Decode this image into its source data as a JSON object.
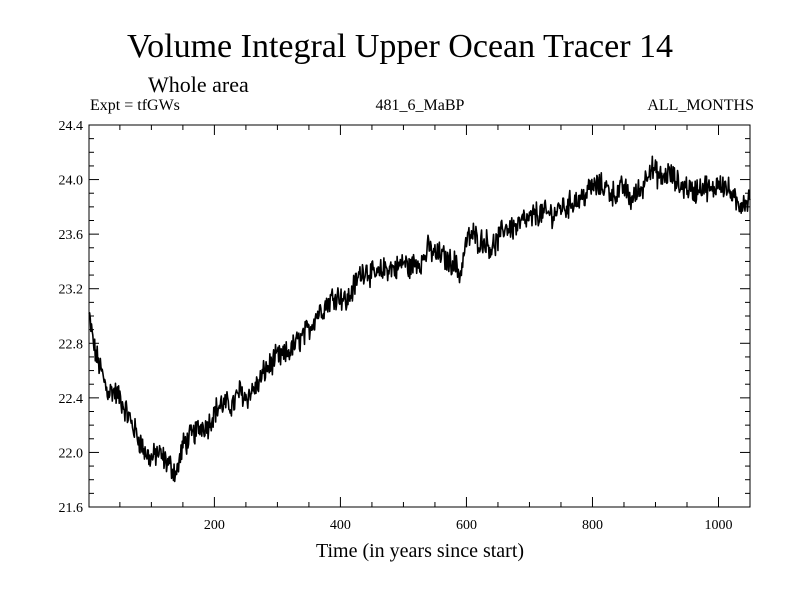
{
  "header": {
    "title": "Volume Integral Upper Ocean Tracer 14",
    "subtitle": "Whole area",
    "expt": "Expt = tfGWs",
    "run": "481_6_MaBP",
    "months": "ALL_MONTHS"
  },
  "chart_data": {
    "type": "line",
    "title": "Volume Integral Upper Ocean Tracer 14",
    "xlabel": "Time (in years since start)",
    "ylabel": "",
    "xlim": [
      1,
      1050
    ],
    "ylim": [
      21.6,
      24.4
    ],
    "xticks": [
      200,
      400,
      600,
      800,
      1000
    ],
    "yticks": [
      21.6,
      22.0,
      22.4,
      22.8,
      23.2,
      23.6,
      24.0,
      24.4
    ],
    "ytick_labels": [
      "21.6",
      "22.0",
      "22.4",
      "22.8",
      "23.2",
      "23.6",
      "24.0",
      "24.4"
    ],
    "grid": false,
    "series": [
      {
        "name": "tracer14",
        "x": [
          1,
          10,
          20,
          30,
          40,
          50,
          60,
          70,
          80,
          90,
          100,
          110,
          120,
          130,
          140,
          150,
          160,
          170,
          180,
          190,
          200,
          210,
          220,
          230,
          240,
          250,
          260,
          270,
          280,
          290,
          300,
          310,
          320,
          330,
          340,
          350,
          360,
          370,
          380,
          390,
          400,
          410,
          420,
          430,
          440,
          450,
          460,
          470,
          480,
          490,
          500,
          510,
          520,
          530,
          540,
          550,
          560,
          570,
          580,
          590,
          600,
          610,
          620,
          630,
          640,
          650,
          660,
          670,
          680,
          690,
          700,
          710,
          720,
          730,
          740,
          750,
          760,
          770,
          780,
          790,
          800,
          810,
          820,
          830,
          840,
          850,
          860,
          870,
          880,
          890,
          900,
          910,
          920,
          930,
          940,
          950,
          960,
          970,
          980,
          990,
          1000,
          1010,
          1020,
          1030,
          1040,
          1050
        ],
        "values": [
          23.0,
          22.75,
          22.6,
          22.45,
          22.45,
          22.4,
          22.3,
          22.2,
          22.1,
          22.0,
          21.95,
          22.0,
          21.95,
          21.9,
          21.85,
          22.05,
          22.1,
          22.15,
          22.2,
          22.2,
          22.3,
          22.35,
          22.35,
          22.35,
          22.45,
          22.4,
          22.45,
          22.5,
          22.6,
          22.65,
          22.7,
          22.7,
          22.75,
          22.8,
          22.85,
          22.9,
          23.0,
          23.05,
          23.1,
          23.15,
          23.15,
          23.1,
          23.2,
          23.3,
          23.35,
          23.3,
          23.3,
          23.35,
          23.35,
          23.35,
          23.4,
          23.35,
          23.4,
          23.4,
          23.5,
          23.45,
          23.45,
          23.4,
          23.4,
          23.3,
          23.55,
          23.6,
          23.55,
          23.55,
          23.5,
          23.55,
          23.65,
          23.65,
          23.65,
          23.7,
          23.7,
          23.75,
          23.75,
          23.75,
          23.75,
          23.8,
          23.8,
          23.85,
          23.85,
          23.9,
          23.95,
          23.95,
          23.95,
          23.9,
          23.9,
          23.95,
          23.85,
          23.9,
          23.95,
          24.1,
          24.05,
          24.0,
          24.05,
          24.0,
          23.95,
          23.95,
          23.9,
          23.95,
          23.95,
          23.9,
          24.0,
          23.95,
          23.9,
          23.8,
          23.85,
          23.85
        ]
      }
    ]
  }
}
